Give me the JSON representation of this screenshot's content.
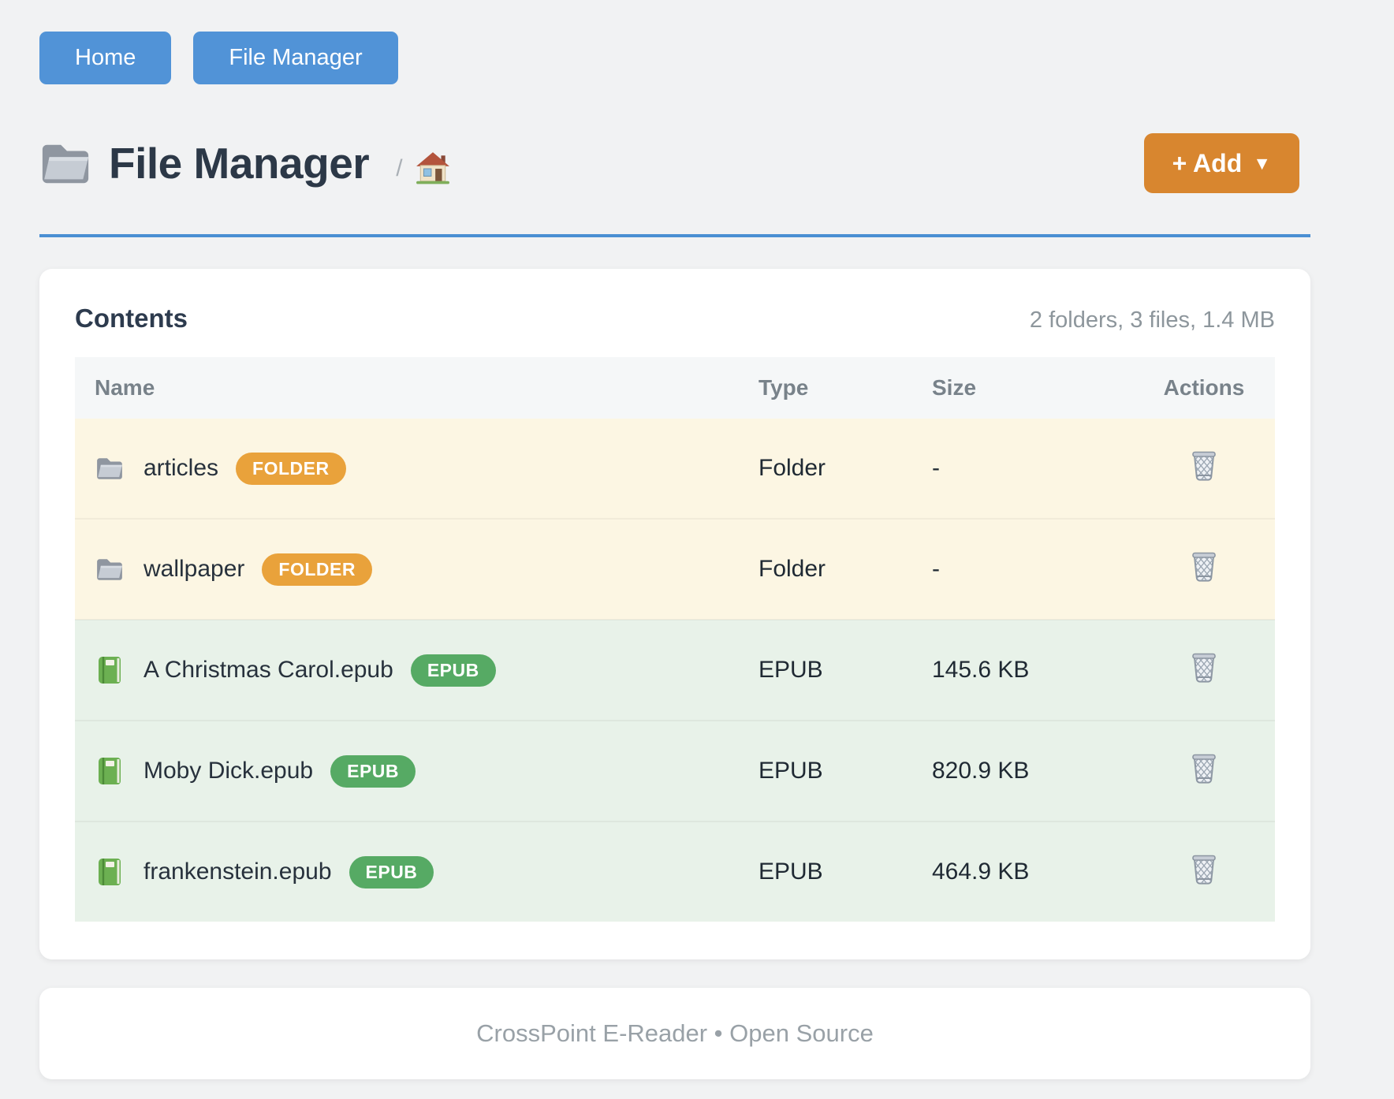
{
  "nav": {
    "home_label": "Home",
    "file_manager_label": "File Manager"
  },
  "header": {
    "title": "File Manager",
    "breadcrumb_separator": "/",
    "add_button_label": "+ Add",
    "add_button_caret": "▼"
  },
  "contents": {
    "heading": "Contents",
    "summary": "2 folders, 3 files, 1.4 MB"
  },
  "table": {
    "columns": [
      "Name",
      "Type",
      "Size",
      "Actions"
    ],
    "rows": [
      {
        "icon": "folder-icon",
        "name": "articles",
        "badge": "FOLDER",
        "type": "Folder",
        "size": "-",
        "kind": "folder"
      },
      {
        "icon": "folder-icon",
        "name": "wallpaper",
        "badge": "FOLDER",
        "type": "Folder",
        "size": "-",
        "kind": "folder"
      },
      {
        "icon": "book-icon",
        "name": "A Christmas Carol.epub",
        "badge": "EPUB",
        "type": "EPUB",
        "size": "145.6 KB",
        "kind": "epub"
      },
      {
        "icon": "book-icon",
        "name": "Moby Dick.epub",
        "badge": "EPUB",
        "type": "EPUB",
        "size": "820.9 KB",
        "kind": "epub"
      },
      {
        "icon": "book-icon",
        "name": "frankenstein.epub",
        "badge": "EPUB",
        "type": "EPUB",
        "size": "464.9 KB",
        "kind": "epub"
      }
    ]
  },
  "footer": {
    "text": "CrossPoint E-Reader • Open Source"
  },
  "icons": {
    "title_icon": "folder-icon",
    "breadcrumb_icon": "house-icon",
    "row_action_icon": "trash-icon"
  },
  "colors": {
    "nav_button_blue": "#5193d7",
    "title_rule_blue": "#4a8fd3",
    "add_button_orange": "#d8862f",
    "folder_badge_orange": "#e9a23b",
    "epub_badge_green": "#56aa64",
    "folder_row_bg": "#fcf6e3",
    "epub_row_bg": "#e8f2e9",
    "page_bg": "#f1f2f3"
  }
}
